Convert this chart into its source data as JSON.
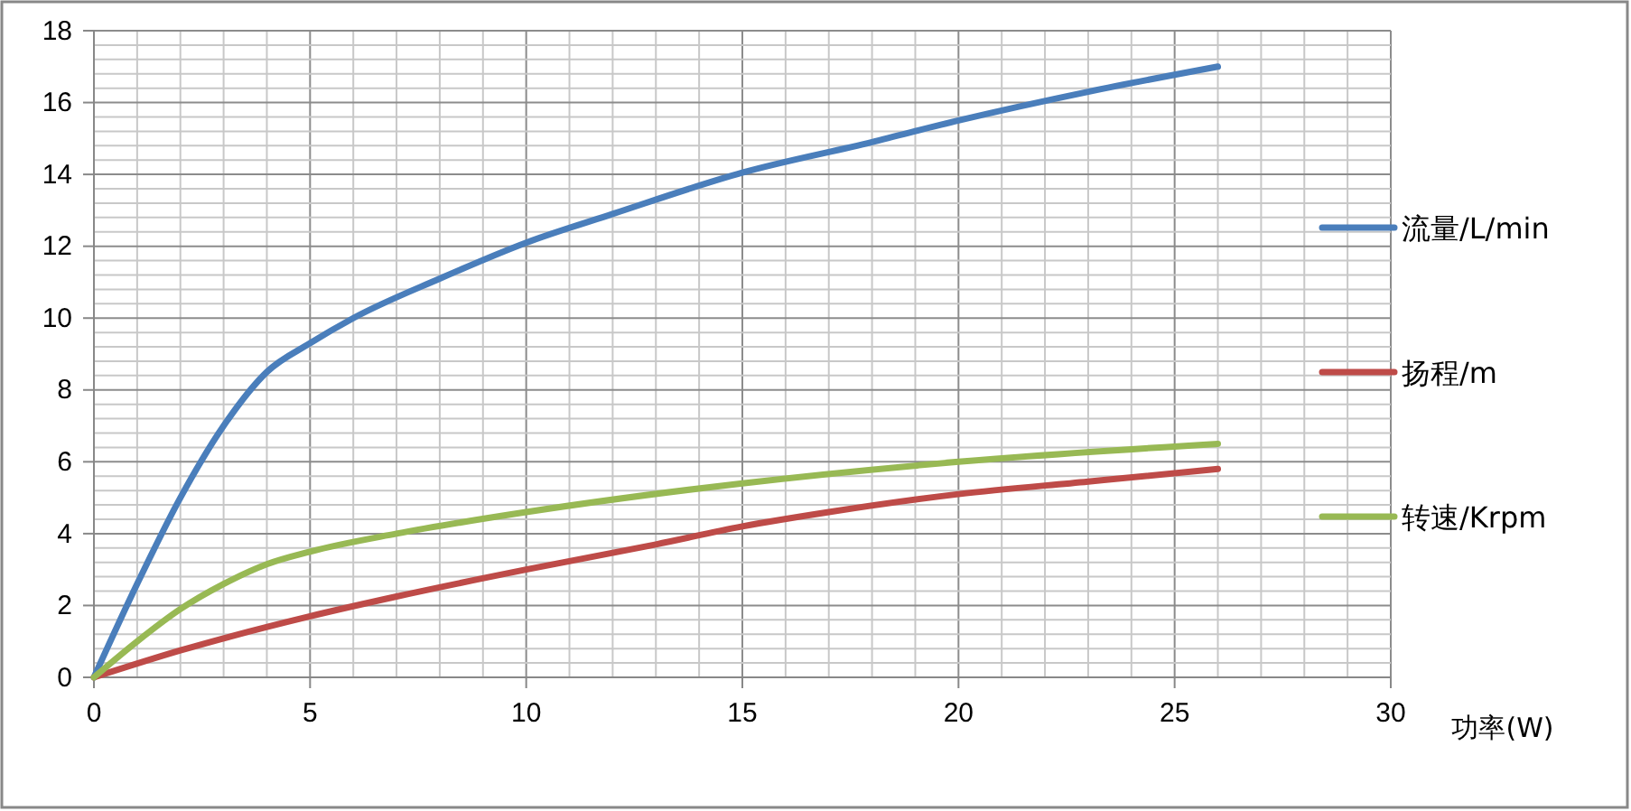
{
  "chart_data": {
    "type": "line",
    "xlabel": "功率(W)",
    "xlim": [
      0,
      30
    ],
    "xticks": [
      0,
      5,
      10,
      15,
      20,
      25,
      30
    ],
    "ylim": [
      0,
      18
    ],
    "yticks": [
      0,
      2,
      4,
      6,
      8,
      10,
      12,
      14,
      16,
      18
    ],
    "grid": true,
    "legend": "right",
    "marker": "none",
    "line_style": "solid",
    "series": [
      {
        "name": "流量/L/min",
        "color": "#4a7ebb",
        "x": [
          0,
          1,
          2,
          3,
          4,
          5,
          6,
          8,
          10,
          12,
          15,
          18,
          20,
          23,
          26
        ],
        "values": [
          0,
          2.6,
          5,
          7,
          8.5,
          9.3,
          10,
          11.1,
          12.1,
          12.9,
          14.05,
          14.9,
          15.5,
          16.3,
          17
        ]
      },
      {
        "name": "扬程/m",
        "color": "#be4b48",
        "x": [
          0,
          2,
          5,
          7,
          10,
          13,
          15,
          17,
          20,
          23,
          26
        ],
        "values": [
          0,
          0.75,
          1.7,
          2.25,
          3,
          3.7,
          4.2,
          4.6,
          5.1,
          5.45,
          5.8
        ]
      },
      {
        "name": "转速/Krpm",
        "color": "#98b954",
        "x": [
          0,
          1,
          2,
          3,
          4,
          5,
          7,
          10,
          15,
          20,
          26
        ],
        "values": [
          0,
          1,
          1.9,
          2.6,
          3.15,
          3.5,
          4,
          4.6,
          5.4,
          6,
          6.5
        ]
      }
    ]
  }
}
